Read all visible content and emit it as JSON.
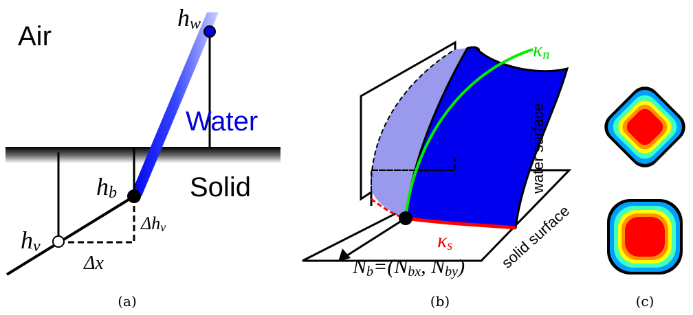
{
  "panel_a": {
    "air": "Air",
    "water": "Water",
    "solid": "Solid",
    "h_w": {
      "main": "h",
      "sub": "w"
    },
    "h_b": {
      "main": "h",
      "sub": "b"
    },
    "h_v": {
      "main": "h",
      "sub": "v"
    },
    "delta_h_v": {
      "main": "Δh",
      "sub": "v"
    },
    "delta_x": "Δx",
    "caption": "(a)"
  },
  "panel_b": {
    "kappa_n": {
      "main": "κ",
      "sub": "n"
    },
    "kappa_s": {
      "main": "κ",
      "sub": "s"
    },
    "water_surface": "water surface",
    "solid_surface": "solid surface",
    "normal": {
      "n": "N",
      "n_sub": "b",
      "eq": "=(N",
      "bx": "bx",
      "comma": ", N",
      "by": "by",
      "close": ")"
    },
    "caption": "(b)"
  },
  "panel_c": {
    "caption": "(c)"
  }
}
